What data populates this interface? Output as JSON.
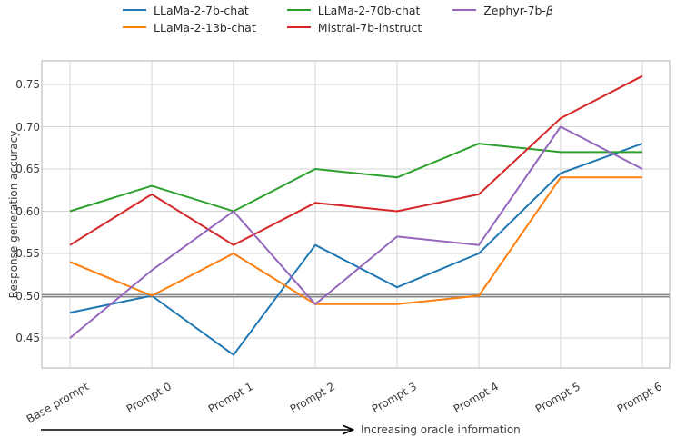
{
  "chart_data": {
    "type": "line",
    "title": "",
    "xlabel": "",
    "ylabel": "Response generation accuracy",
    "categories": [
      "Base prompt",
      "Prompt 0",
      "Prompt 1",
      "Prompt 2",
      "Prompt 3",
      "Prompt 4",
      "Prompt 5",
      "Prompt 6"
    ],
    "yticks": [
      0.45,
      0.5,
      0.55,
      0.6,
      0.65,
      0.7,
      0.75
    ],
    "ytick_labels": [
      "0.45",
      "0.50",
      "0.55",
      "0.60",
      "0.65",
      "0.70",
      "0.75"
    ],
    "ylim": [
      0.414,
      0.783
    ],
    "grid": true,
    "legend_position": "top-center",
    "legend_columns": 3,
    "series": [
      {
        "name": "LLaMa-2-7b-chat",
        "color": "#1f77b4",
        "values": [
          0.48,
          0.5,
          0.43,
          0.56,
          0.51,
          0.55,
          0.645,
          0.68
        ]
      },
      {
        "name": "LLaMa-2-13b-chat",
        "color": "#ff7f0e",
        "values": [
          0.54,
          0.5,
          0.55,
          0.49,
          0.49,
          0.5,
          0.64,
          0.64
        ]
      },
      {
        "name": "LLaMa-2-70b-chat",
        "color": "#2ca02c",
        "values": [
          0.6,
          0.63,
          0.6,
          0.65,
          0.64,
          0.68,
          0.67,
          0.67
        ]
      },
      {
        "name": "Mistral-7b-instruct",
        "color": "#d62728",
        "values": [
          0.56,
          0.62,
          0.56,
          0.61,
          0.6,
          0.62,
          0.71,
          0.76
        ]
      },
      {
        "name": "Zephyr-7b-β",
        "color": "#9467bd",
        "values": [
          0.45,
          0.53,
          0.6,
          0.49,
          0.57,
          0.56,
          0.7,
          0.65
        ]
      }
    ],
    "reference_line": {
      "y": 0.5,
      "color": "#8a8a8a"
    },
    "annotation": {
      "arrow_label": "Increasing oracle information"
    },
    "colors": {
      "grid": "#d4d4d4",
      "spine": "#bdbdbd",
      "tick_text": "#3b3b3b",
      "arrow": "#000000"
    }
  }
}
